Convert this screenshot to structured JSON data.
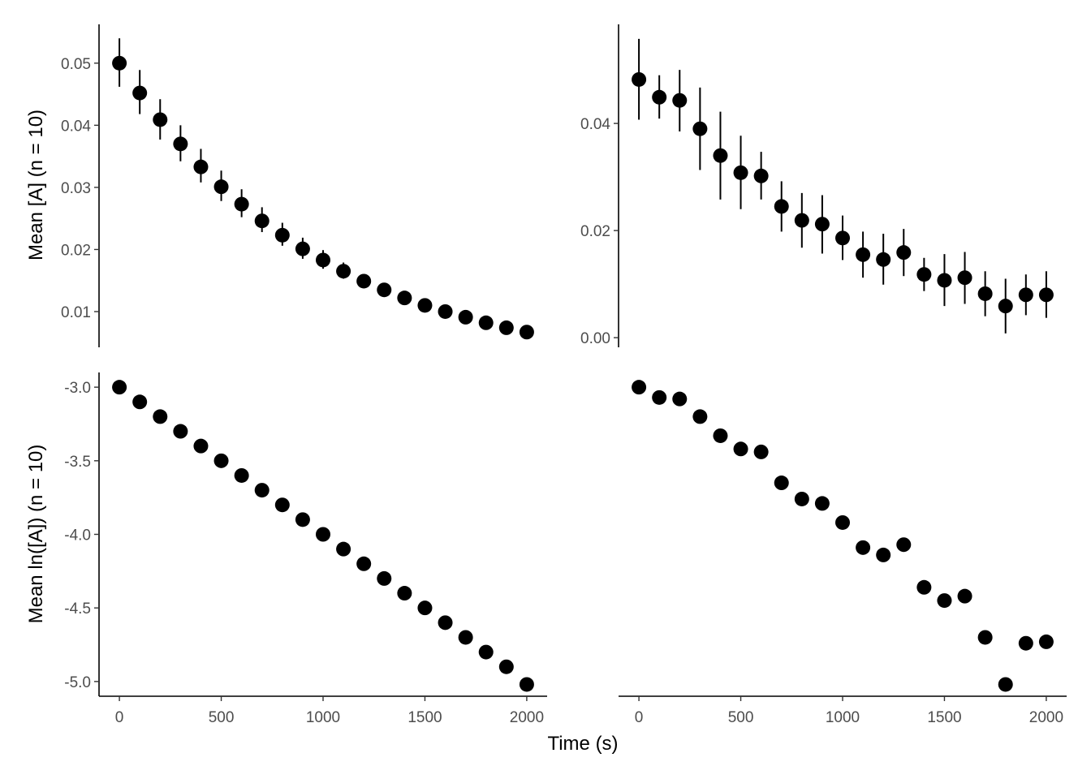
{
  "axis_titles": {
    "x": "Time (s)",
    "y_top": "Mean [A] (n = 10)",
    "y_bottom": "Mean ln([A]) (n = 10)"
  },
  "chart_data": [
    {
      "type": "scatter",
      "panel": "top-left",
      "xlabel": "Time (s)",
      "ylabel": "Mean [A] (n = 10)",
      "xlim": [
        -100,
        2100
      ],
      "ylim": [
        0.00425,
        0.05625
      ],
      "x_ticks": [
        0,
        500,
        1000,
        1500,
        2000
      ],
      "y_ticks": [
        0.01,
        0.02,
        0.03,
        0.04,
        0.05
      ],
      "y_tick_labels": [
        "0.01",
        "0.02",
        "0.03",
        "0.04",
        "0.05"
      ],
      "show_x_axis": false,
      "grid": false,
      "x": [
        0,
        100,
        200,
        300,
        400,
        500,
        600,
        700,
        800,
        900,
        1000,
        1100,
        1200,
        1300,
        1400,
        1500,
        1600,
        1700,
        1800,
        1900,
        2000
      ],
      "y": [
        0.05,
        0.0452,
        0.0409,
        0.037,
        0.0333,
        0.0301,
        0.0273,
        0.0246,
        0.0223,
        0.0201,
        0.0183,
        0.0165,
        0.0149,
        0.0135,
        0.0122,
        0.011,
        0.01,
        0.0091,
        0.0082,
        0.0074,
        0.0067
      ],
      "err_low": [
        0.0462,
        0.0418,
        0.0377,
        0.0342,
        0.0308,
        0.0278,
        0.0252,
        0.0228,
        0.0206,
        0.0185,
        0.0169,
        0.0153,
        0.014,
        0.0127,
        0.0115,
        0.0104,
        0.0095,
        0.0087,
        0.0079,
        0.0072,
        0.0065
      ],
      "err_high": [
        0.054,
        0.0489,
        0.0442,
        0.04,
        0.0362,
        0.0327,
        0.0297,
        0.0268,
        0.0243,
        0.0219,
        0.0199,
        0.0179,
        0.016,
        0.0144,
        0.013,
        0.0117,
        0.0106,
        0.0096,
        0.0086,
        0.0077,
        0.007
      ]
    },
    {
      "type": "scatter",
      "panel": "top-right",
      "xlabel": "Time (s)",
      "ylabel": "",
      "xlim": [
        -100,
        2100
      ],
      "ylim": [
        -0.0018,
        0.0585
      ],
      "x_ticks": [
        0,
        500,
        1000,
        1500,
        2000
      ],
      "y_ticks": [
        0.0,
        0.02,
        0.04
      ],
      "y_tick_labels": [
        "0.00",
        "0.02",
        "0.04"
      ],
      "show_x_axis": false,
      "grid": false,
      "x": [
        0,
        100,
        200,
        300,
        400,
        500,
        600,
        700,
        800,
        900,
        1000,
        1100,
        1200,
        1300,
        1400,
        1500,
        1600,
        1700,
        1800,
        1900,
        2000
      ],
      "y": [
        0.0482,
        0.0449,
        0.0443,
        0.039,
        0.034,
        0.0308,
        0.0302,
        0.0245,
        0.0219,
        0.0212,
        0.0186,
        0.0155,
        0.0146,
        0.0159,
        0.0118,
        0.0107,
        0.0112,
        0.0082,
        0.0059,
        0.008,
        0.008
      ],
      "err_low": [
        0.0407,
        0.0409,
        0.0385,
        0.0313,
        0.0258,
        0.024,
        0.0258,
        0.0198,
        0.0168,
        0.0157,
        0.0145,
        0.0112,
        0.0099,
        0.0115,
        0.0087,
        0.0059,
        0.0063,
        0.004,
        0.0008,
        0.0042,
        0.0037
      ],
      "err_high": [
        0.0558,
        0.049,
        0.05,
        0.0467,
        0.0422,
        0.0377,
        0.0347,
        0.0292,
        0.027,
        0.0266,
        0.0228,
        0.0198,
        0.0194,
        0.0203,
        0.0149,
        0.0156,
        0.016,
        0.0124,
        0.011,
        0.0118,
        0.0124
      ]
    },
    {
      "type": "scatter",
      "panel": "bottom-left",
      "xlabel": "Time (s)",
      "ylabel": "Mean ln([A]) (n = 10)",
      "xlim": [
        -100,
        2100
      ],
      "ylim": [
        -5.1,
        -2.9
      ],
      "x_ticks": [
        0,
        500,
        1000,
        1500,
        2000
      ],
      "x_tick_labels": [
        "0",
        "500",
        "1000",
        "1500",
        "2000"
      ],
      "y_ticks": [
        -5.0,
        -4.5,
        -4.0,
        -3.5,
        -3.0
      ],
      "y_tick_labels": [
        "-5.0",
        "-4.5",
        "-4.0",
        "-3.5",
        "-3.0"
      ],
      "show_x_axis": true,
      "grid": false,
      "x": [
        0,
        100,
        200,
        300,
        400,
        500,
        600,
        700,
        800,
        900,
        1000,
        1100,
        1200,
        1300,
        1400,
        1500,
        1600,
        1700,
        1800,
        1900,
        2000
      ],
      "y": [
        -3.0,
        -3.1,
        -3.2,
        -3.3,
        -3.4,
        -3.5,
        -3.6,
        -3.7,
        -3.8,
        -3.9,
        -4.0,
        -4.1,
        -4.2,
        -4.3,
        -4.4,
        -4.5,
        -4.6,
        -4.7,
        -4.8,
        -4.9,
        -5.02
      ]
    },
    {
      "type": "scatter",
      "panel": "bottom-right",
      "xlabel": "Time (s)",
      "ylabel": "",
      "xlim": [
        -100,
        2100
      ],
      "ylim": [
        -5.1,
        -2.9
      ],
      "x_ticks": [
        0,
        500,
        1000,
        1500,
        2000
      ],
      "x_tick_labels": [
        "0",
        "500",
        "1000",
        "1500",
        "2000"
      ],
      "y_ticks": [],
      "show_x_axis": true,
      "grid": false,
      "x": [
        0,
        100,
        200,
        300,
        400,
        500,
        600,
        700,
        800,
        900,
        1000,
        1100,
        1200,
        1300,
        1400,
        1500,
        1600,
        1700,
        1800,
        1900,
        2000
      ],
      "y": [
        -3.0,
        -3.07,
        -3.08,
        -3.2,
        -3.33,
        -3.42,
        -3.44,
        -3.65,
        -3.76,
        -3.79,
        -3.92,
        -4.09,
        -4.14,
        -4.07,
        -4.36,
        -4.45,
        -4.42,
        -4.7,
        -5.02,
        -4.74,
        -4.73
      ]
    }
  ]
}
